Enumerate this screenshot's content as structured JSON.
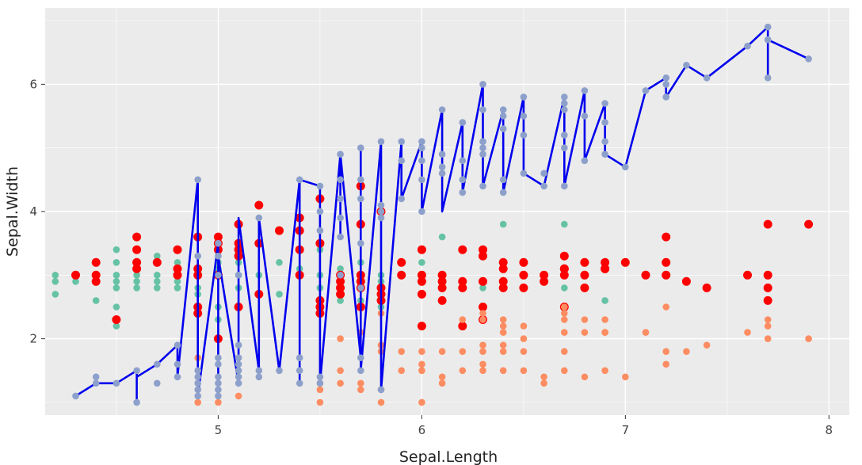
{
  "chart_data": {
    "type": "scatter",
    "title": "",
    "xlabel": "Sepal.Length",
    "ylabel": "Sepal.Width",
    "xlim": [
      4.15,
      8.1
    ],
    "ylim": [
      0.8,
      7.2
    ],
    "x_ticks": [
      5,
      6,
      7,
      8
    ],
    "y_ticks": [
      2,
      4,
      6
    ],
    "grid": true,
    "panel_background": "#EBEBEB",
    "gridline_color": "#FFFFFF",
    "series": [
      {
        "name": "teal-points",
        "color": "#66C2A5",
        "marker": "circle-small",
        "x": [
          4.2,
          4.2,
          4.2,
          4.3,
          4.3,
          4.4,
          4.4,
          4.4,
          4.4,
          4.5,
          4.5,
          4.5,
          4.5,
          4.5,
          4.5,
          4.5,
          4.5,
          4.6,
          4.6,
          4.6,
          4.6,
          4.6,
          4.7,
          4.7,
          4.7,
          4.7,
          4.7,
          4.8,
          4.8,
          4.8,
          4.8,
          4.8,
          4.9,
          4.9,
          4.9,
          4.9,
          4.9,
          4.9,
          4.9,
          5.0,
          5.0,
          5.0,
          5.0,
          5.0,
          5.0,
          5.0,
          5.0,
          5.0,
          5.1,
          5.1,
          5.1,
          5.1,
          5.1,
          5.2,
          5.2,
          5.3,
          5.3,
          5.4,
          5.4,
          5.4,
          5.5,
          5.5,
          5.5,
          5.6,
          5.6,
          5.6,
          5.6,
          5.6,
          5.7,
          5.7,
          5.7,
          5.7,
          5.8,
          5.8,
          5.8,
          5.9,
          5.9,
          6.0,
          6.0,
          6.0,
          6.1,
          6.1,
          6.1,
          6.2,
          6.3,
          6.4,
          6.6,
          6.7,
          6.7,
          6.9
        ],
        "y": [
          3.0,
          2.9,
          2.7,
          3.0,
          2.9,
          3.2,
          3.0,
          2.9,
          2.6,
          3.4,
          3.2,
          3.0,
          2.9,
          2.8,
          2.5,
          2.3,
          2.2,
          3.2,
          3.0,
          2.9,
          2.8,
          3.1,
          3.3,
          3.2,
          3.0,
          2.9,
          2.8,
          3.1,
          3.0,
          2.9,
          2.8,
          3.2,
          3.6,
          3.0,
          2.8,
          2.7,
          2.5,
          2.4,
          3.1,
          3.4,
          3.2,
          3.0,
          2.5,
          2.3,
          2.0,
          3.1,
          3.3,
          3.5,
          3.4,
          3.2,
          3.0,
          2.8,
          2.5,
          3.0,
          2.7,
          3.2,
          2.7,
          3.4,
          3.1,
          3.0,
          3.4,
          3.0,
          2.8,
          3.1,
          3.0,
          2.9,
          2.8,
          2.6,
          3.2,
          3.0,
          2.9,
          2.6,
          3.0,
          2.9,
          2.5,
          3.2,
          3.0,
          3.4,
          3.2,
          3.0,
          3.6,
          3.0,
          2.8,
          2.9,
          2.8,
          3.8,
          3.0,
          3.8,
          2.8,
          2.6
        ]
      },
      {
        "name": "red-points",
        "color": "#FF0000",
        "marker": "circle-large",
        "x": [
          4.3,
          4.4,
          4.4,
          4.4,
          4.5,
          4.6,
          4.6,
          4.6,
          4.6,
          4.7,
          4.8,
          4.8,
          4.8,
          4.9,
          4.9,
          4.9,
          4.9,
          4.9,
          5.0,
          5.0,
          5.0,
          5.0,
          5.0,
          5.1,
          5.1,
          5.1,
          5.1,
          5.1,
          5.2,
          5.2,
          5.2,
          5.3,
          5.4,
          5.4,
          5.4,
          5.4,
          5.5,
          5.5,
          5.5,
          5.5,
          5.5,
          5.6,
          5.6,
          5.6,
          5.6,
          5.7,
          5.7,
          5.7,
          5.7,
          5.7,
          5.7,
          5.8,
          5.8,
          5.8,
          5.8,
          5.9,
          5.9,
          6.0,
          6.0,
          6.0,
          6.0,
          6.0,
          6.1,
          6.1,
          6.1,
          6.1,
          6.2,
          6.2,
          6.2,
          6.2,
          6.3,
          6.3,
          6.3,
          6.3,
          6.3,
          6.4,
          6.4,
          6.4,
          6.4,
          6.5,
          6.5,
          6.5,
          6.6,
          6.6,
          6.7,
          6.7,
          6.7,
          6.7,
          6.7,
          6.8,
          6.8,
          6.8,
          6.9,
          6.9,
          6.9,
          7.0,
          7.1,
          7.2,
          7.2,
          7.2,
          7.3,
          7.4,
          7.6,
          7.7,
          7.7,
          7.7,
          7.7,
          7.9
        ],
        "y": [
          3.0,
          3.2,
          3.0,
          2.9,
          2.3,
          3.6,
          3.4,
          3.2,
          3.1,
          3.2,
          3.4,
          3.1,
          3.0,
          3.6,
          3.1,
          3.0,
          2.5,
          2.4,
          3.6,
          3.5,
          3.4,
          3.0,
          2.0,
          3.8,
          3.5,
          3.4,
          3.3,
          2.5,
          4.1,
          3.5,
          2.7,
          3.7,
          3.9,
          3.7,
          3.4,
          3.0,
          4.2,
          3.5,
          2.6,
          2.5,
          2.4,
          3.0,
          2.9,
          2.8,
          2.7,
          4.4,
          3.8,
          3.0,
          2.9,
          2.8,
          2.5,
          4.0,
          2.8,
          2.7,
          2.6,
          3.2,
          3.0,
          3.4,
          3.0,
          2.9,
          2.7,
          2.2,
          3.0,
          2.9,
          2.8,
          2.6,
          3.4,
          2.9,
          2.8,
          2.2,
          3.4,
          3.3,
          2.9,
          2.5,
          2.3,
          3.2,
          3.1,
          2.9,
          2.8,
          3.2,
          3.0,
          2.8,
          3.0,
          2.9,
          3.3,
          3.1,
          3.0,
          2.5,
          3.1,
          3.2,
          3.0,
          2.8,
          3.2,
          3.1,
          3.1,
          3.2,
          3.0,
          3.6,
          3.2,
          3.0,
          2.9,
          2.8,
          3.0,
          3.8,
          3.0,
          2.8,
          2.6,
          3.8
        ]
      },
      {
        "name": "orange-points",
        "color": "#FC8D62",
        "marker": "circle-small",
        "x": [
          4.9,
          4.9,
          5.0,
          5.1,
          5.5,
          5.5,
          5.5,
          5.6,
          5.6,
          5.6,
          5.7,
          5.7,
          5.7,
          5.8,
          5.8,
          5.8,
          5.8,
          5.8,
          5.9,
          5.9,
          6.0,
          6.0,
          6.0,
          6.0,
          6.0,
          6.1,
          6.1,
          6.1,
          6.2,
          6.2,
          6.2,
          6.3,
          6.3,
          6.3,
          6.3,
          6.3,
          6.3,
          6.4,
          6.4,
          6.4,
          6.4,
          6.4,
          6.4,
          6.5,
          6.5,
          6.5,
          6.5,
          6.6,
          6.6,
          6.7,
          6.7,
          6.7,
          6.7,
          6.7,
          6.7,
          6.8,
          6.8,
          6.8,
          6.9,
          6.9,
          6.9,
          6.9,
          7.0,
          7.1,
          7.2,
          7.2,
          7.2,
          7.3,
          7.4,
          7.6,
          7.7,
          7.7,
          7.7,
          7.9
        ],
        "y": [
          1.7,
          1.0,
          1.0,
          1.1,
          1.3,
          1.2,
          1.0,
          2.0,
          1.5,
          1.3,
          2.1,
          1.3,
          1.2,
          2.4,
          1.9,
          1.8,
          1.2,
          1.0,
          1.8,
          1.5,
          1.8,
          1.6,
          1.5,
          1.0,
          1.5,
          1.8,
          1.4,
          1.3,
          2.3,
          1.8,
          1.5,
          2.4,
          2.3,
          1.9,
          1.8,
          1.6,
          1.5,
          2.3,
          2.2,
          2.1,
          1.9,
          1.8,
          1.5,
          2.2,
          2.0,
          1.8,
          1.5,
          1.4,
          1.3,
          2.5,
          2.4,
          2.3,
          2.1,
          1.8,
          1.5,
          2.3,
          2.1,
          1.4,
          2.3,
          2.1,
          1.5,
          2.1,
          1.4,
          2.1,
          2.5,
          1.8,
          1.6,
          1.8,
          1.9,
          2.1,
          2.3,
          2.2,
          2.0,
          2.0
        ]
      },
      {
        "name": "slate-points",
        "color": "#8DA0CB",
        "marker": "circle-small",
        "x": [
          4.3,
          4.4,
          4.4,
          4.5,
          4.6,
          4.6,
          4.7,
          4.7,
          4.8,
          4.8,
          4.8,
          4.9,
          4.9,
          4.9,
          4.9,
          4.9,
          4.9,
          4.9,
          5.0,
          5.0,
          5.0,
          5.0,
          5.0,
          5.0,
          5.0,
          5.0,
          5.0,
          5.1,
          5.1,
          5.1,
          5.1,
          5.1,
          5.1,
          5.1,
          5.2,
          5.2,
          5.2,
          5.3,
          5.4,
          5.4,
          5.4,
          5.4,
          5.5,
          5.5,
          5.5,
          5.5,
          5.5,
          5.6,
          5.6,
          5.6,
          5.6,
          5.6,
          5.6,
          5.7,
          5.7,
          5.7,
          5.7,
          5.7,
          5.7,
          5.7,
          5.8,
          5.8,
          5.8,
          5.8,
          5.8,
          5.9,
          5.9,
          5.9,
          6.0,
          6.0,
          6.0,
          6.0,
          6.0,
          6.1,
          6.1,
          6.1,
          6.1,
          6.2,
          6.2,
          6.2,
          6.2,
          6.3,
          6.3,
          6.3,
          6.3,
          6.3,
          6.3,
          6.4,
          6.4,
          6.4,
          6.4,
          6.4,
          6.5,
          6.5,
          6.5,
          6.5,
          6.6,
          6.6,
          6.7,
          6.7,
          6.7,
          6.7,
          6.7,
          6.7,
          6.8,
          6.8,
          6.8,
          6.9,
          6.9,
          6.9,
          6.9,
          7.0,
          7.1,
          7.2,
          7.2,
          7.2,
          7.3,
          7.4,
          7.6,
          7.7,
          7.7,
          7.7,
          7.7,
          7.9
        ],
        "y": [
          1.1,
          1.4,
          1.3,
          1.3,
          1.5,
          1.0,
          1.6,
          1.3,
          1.9,
          1.6,
          1.4,
          4.5,
          3.3,
          1.5,
          1.4,
          1.3,
          1.2,
          1.1,
          3.5,
          3.3,
          3.0,
          1.7,
          1.6,
          1.4,
          1.3,
          1.2,
          1.1,
          3.0,
          1.9,
          1.7,
          1.6,
          1.5,
          1.4,
          1.3,
          3.9,
          1.5,
          1.4,
          1.5,
          4.5,
          1.7,
          1.5,
          1.3,
          4.4,
          4.0,
          3.7,
          1.4,
          1.3,
          4.9,
          4.5,
          4.2,
          3.9,
          3.6,
          3.0,
          5.0,
          4.5,
          4.2,
          3.5,
          2.8,
          1.7,
          1.5,
          5.1,
          4.1,
          4.0,
          3.9,
          1.2,
          5.1,
          4.8,
          4.2,
          5.1,
          5.0,
          4.5,
          4.0,
          4.8,
          5.6,
          4.9,
          4.7,
          4.6,
          5.4,
          4.8,
          4.5,
          4.3,
          6.0,
          5.6,
          5.1,
          5.0,
          4.9,
          4.4,
          5.6,
          5.5,
          5.3,
          4.5,
          4.3,
          5.8,
          5.5,
          5.2,
          4.6,
          4.6,
          4.4,
          5.8,
          5.7,
          5.6,
          5.2,
          5.0,
          4.4,
          5.9,
          5.5,
          4.8,
          5.7,
          5.4,
          5.1,
          4.9,
          4.7,
          5.9,
          6.1,
          6.0,
          5.8,
          6.3,
          6.1,
          6.6,
          6.9,
          6.7,
          6.1,
          6.7,
          6.4
        ]
      },
      {
        "name": "blue-line",
        "color": "#0000EE",
        "marker": "line",
        "x": [
          4.3,
          4.4,
          4.4,
          4.4,
          4.5,
          4.6,
          4.6,
          4.6,
          4.7,
          4.7,
          4.8,
          4.8,
          4.9,
          4.9,
          5.0,
          5.0,
          5.0,
          5.1,
          5.1,
          5.2,
          5.2,
          5.3,
          5.4,
          5.4,
          5.4,
          5.5,
          5.5,
          5.6,
          5.6,
          5.6,
          5.7,
          5.7,
          5.7,
          5.8,
          5.8,
          5.9,
          5.9,
          6.0,
          6.0,
          6.1,
          6.1,
          6.2,
          6.2,
          6.3,
          6.3,
          6.4,
          6.4,
          6.5,
          6.5,
          6.6,
          6.6,
          6.7,
          6.7,
          6.8,
          6.8,
          6.9,
          6.9,
          7.0,
          7.1,
          7.2,
          7.2,
          7.3,
          7.4,
          7.6,
          7.7,
          7.7,
          7.7,
          7.9
        ],
        "y": [
          1.1,
          1.3,
          1.4,
          1.3,
          1.3,
          1.5,
          1.0,
          1.4,
          1.6,
          1.6,
          1.9,
          1.4,
          4.5,
          1.1,
          3.5,
          1.1,
          3.3,
          1.3,
          3.9,
          1.5,
          3.9,
          1.5,
          4.5,
          1.3,
          4.5,
          4.4,
          1.3,
          4.9,
          3.6,
          4.9,
          1.7,
          5.0,
          1.5,
          5.1,
          1.2,
          5.1,
          4.2,
          5.1,
          4.0,
          5.6,
          4.0,
          5.4,
          4.3,
          6.0,
          4.4,
          5.6,
          4.3,
          5.8,
          4.6,
          4.4,
          4.4,
          5.8,
          4.4,
          5.9,
          4.8,
          5.7,
          4.9,
          4.7,
          5.9,
          6.1,
          5.8,
          6.3,
          6.1,
          6.6,
          6.9,
          6.1,
          6.7,
          6.4
        ]
      }
    ]
  }
}
